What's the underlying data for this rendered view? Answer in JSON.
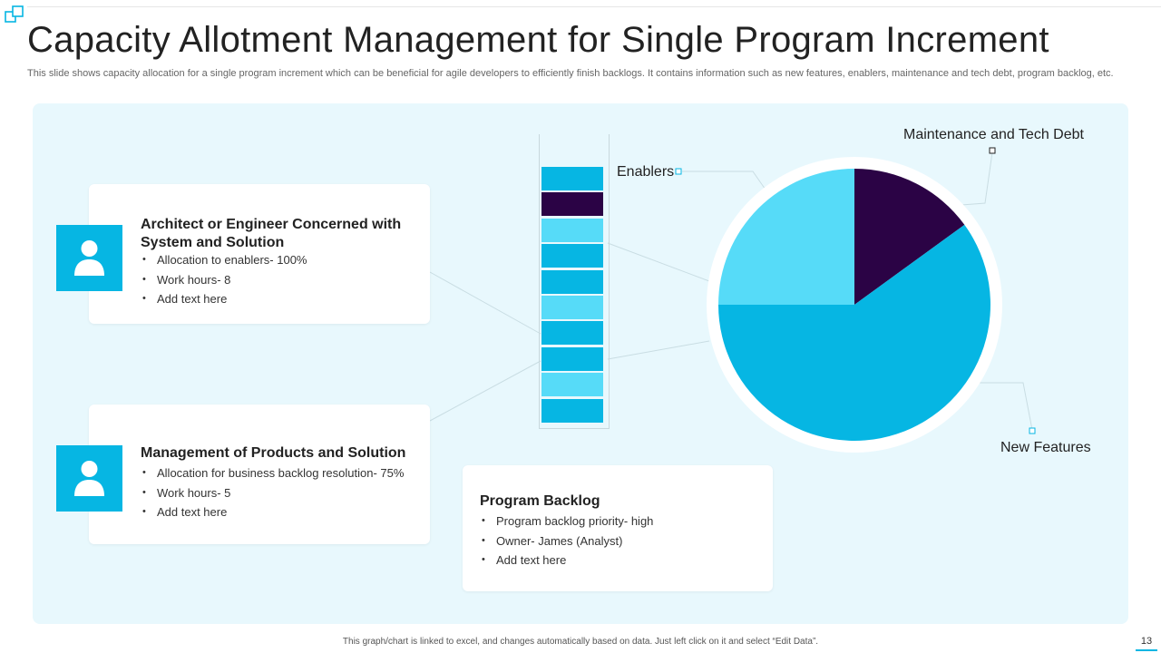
{
  "slide": {
    "title": "Capacity Allotment Management for Single Program Increment",
    "subtitle": "This slide shows capacity allocation for a single program increment which can be beneficial for agile developers to efficiently finish backlogs. It contains information such as new features, enablers, maintenance and tech debt, program backlog, etc.",
    "footnote": "This graph/chart is linked to excel, and changes automatically based on data. Just left click on it and select “Edit Data”.",
    "page_number": "13"
  },
  "colors": {
    "accent": "#06b6e3",
    "light_accent": "#56dbf8",
    "dark": "#2b0345",
    "panel_bg": "#e8f8fd"
  },
  "cards": {
    "architect": {
      "icon": "user-icon",
      "title": "Architect or Engineer Concerned with System and Solution",
      "bullets": [
        "Allocation to enablers- 100%",
        "Work hours- 8",
        "Add text here"
      ]
    },
    "management": {
      "icon": "user-icon",
      "title": "Management of Products and Solution",
      "bullets": [
        "Allocation for business backlog resolution- 75%",
        "Work hours- 5",
        "Add text here"
      ]
    },
    "backlog": {
      "title": "Program Backlog",
      "bullets": [
        "Program backlog priority- high",
        "Owner- James (Analyst)",
        "Add text here"
      ]
    }
  },
  "stack": {
    "blocks": [
      "accent",
      "dark",
      "light",
      "accent",
      "accent",
      "light",
      "accent",
      "accent",
      "light",
      "accent"
    ]
  },
  "chart_data": {
    "type": "pie",
    "slices": [
      {
        "name": "Maintenance and Tech Debt",
        "value": 15,
        "color": "#2b0345"
      },
      {
        "name": "New Features",
        "value": 60,
        "color": "#06b6e3"
      },
      {
        "name": "Enablers",
        "value": 25,
        "color": "#56dbf8"
      }
    ]
  }
}
